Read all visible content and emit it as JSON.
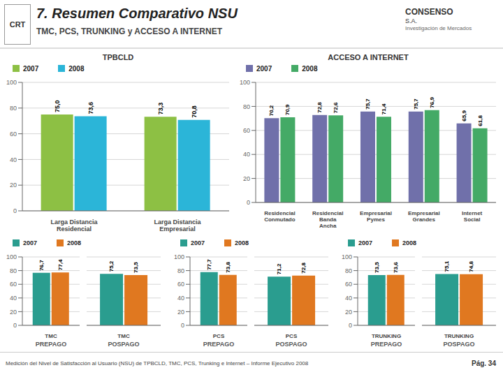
{
  "title": "7. Resumen Comparativo NSU",
  "subtitle": "TMC, PCS, TRUNKING y ACCESO A INTERNET",
  "annotations": [
    "CRT",
    "CONSENSO",
    "S.A.",
    "Investigación de Mercados",
    "Medición del Nivel de Satisfacción al Usuario (NSU) de TPBCLD, TMC, PCS, Trunking e Internet – Informe Ejecutivo 2008",
    "Pág. 34"
  ],
  "chart_data": [
    {
      "type": "bar",
      "title": "TPBCLD",
      "categories": [
        "Larga Distancia\nResidencial",
        "Larga Distancia\nEmpresarial"
      ],
      "series": [
        {
          "name": "2007",
          "color": "#8dc044",
          "values": [
            75.0,
            73.3
          ],
          "value_labels": [
            "75,0",
            "73,3"
          ]
        },
        {
          "name": "2008",
          "color": "#2bb5d8",
          "values": [
            73.6,
            70.8
          ],
          "value_labels": [
            "73,6",
            "70,8"
          ]
        }
      ],
      "ylim": [
        0,
        100
      ],
      "yticks": [
        0,
        20,
        40,
        60,
        80,
        100
      ],
      "grid": true,
      "legend": "upper left",
      "data_labels": true
    },
    {
      "type": "bar",
      "title": "ACCESO A INTERNET",
      "categories": [
        "Residencial\nConmutado",
        "Residencial\nBanda\nAncha",
        "Empresarial\nPymes",
        "Empresarial\nGrandes",
        "Internet\nSocial"
      ],
      "series": [
        {
          "name": "2007",
          "color": "#7070aa",
          "values": [
            70.2,
            72.8,
            75.7,
            75.7,
            65.9
          ],
          "value_labels": [
            "70,2",
            "72,8",
            "75,7",
            "75,7",
            "65,9"
          ]
        },
        {
          "name": "2008",
          "color": "#44aa66",
          "values": [
            70.9,
            72.6,
            71.4,
            76.9,
            61.8
          ],
          "value_labels": [
            "70,9",
            "72,6",
            "71,4",
            "76,9",
            "61,8"
          ]
        }
      ],
      "ylim": [
        0,
        100
      ],
      "yticks": [
        0,
        20,
        40,
        60,
        80,
        100
      ],
      "grid": true,
      "legend": "upper left",
      "data_labels": true
    },
    {
      "type": "bar",
      "categories": [
        "TMC"
      ],
      "xlabel": "PREPAGO",
      "series": [
        {
          "name": "2007",
          "color": "#2a9d8f",
          "values": [
            76.7
          ],
          "value_labels": [
            "76,7"
          ]
        },
        {
          "name": "2008",
          "color": "#e07820",
          "values": [
            77.4
          ],
          "value_labels": [
            "77,4"
          ]
        }
      ],
      "ylim": [
        0,
        100
      ],
      "yticks": [
        0,
        20,
        40,
        60,
        80,
        100
      ],
      "grid": true,
      "legend": "upper left",
      "data_labels": true
    },
    {
      "type": "bar",
      "categories": [
        "TMC"
      ],
      "xlabel": "POSPAGO",
      "series": [
        {
          "name": "2007",
          "color": "#2a9d8f",
          "values": [
            75.2
          ],
          "value_labels": [
            "75,2"
          ]
        },
        {
          "name": "2008",
          "color": "#e07820",
          "values": [
            73.5
          ],
          "value_labels": [
            "73,5"
          ]
        }
      ],
      "ylim": [
        0,
        100
      ],
      "yticks": [
        0,
        20,
        40,
        60,
        80,
        100
      ],
      "grid": true,
      "tick_labels": "x",
      "data_labels": true
    },
    {
      "type": "bar",
      "categories": [
        "PCS"
      ],
      "xlabel": "PREPAGO",
      "series": [
        {
          "name": "2007",
          "color": "#2a9d8f",
          "values": [
            77.7
          ],
          "value_labels": [
            "77,7"
          ]
        },
        {
          "name": "2008",
          "color": "#e07820",
          "values": [
            73.8
          ],
          "value_labels": [
            "73,8"
          ]
        }
      ],
      "ylim": [
        0,
        100
      ],
      "yticks": [
        0,
        20,
        40,
        60,
        80,
        100
      ],
      "grid": true,
      "legend": "upper left",
      "data_labels": true
    },
    {
      "type": "bar",
      "categories": [
        "PCS"
      ],
      "xlabel": "POSPAGO",
      "series": [
        {
          "name": "2007",
          "color": "#2a9d8f",
          "values": [
            71.2
          ],
          "value_labels": [
            "71,2"
          ]
        },
        {
          "name": "2008",
          "color": "#e07820",
          "values": [
            72.8
          ],
          "value_labels": [
            "72,8"
          ]
        }
      ],
      "ylim": [
        0,
        100
      ],
      "yticks": [
        0,
        20,
        40,
        60,
        80,
        100
      ],
      "grid": true,
      "tick_labels": "x",
      "data_labels": true
    },
    {
      "type": "bar",
      "categories": [
        "TRUNKING"
      ],
      "xlabel": "PREPAGO",
      "series": [
        {
          "name": "2007",
          "color": "#2a9d8f",
          "values": [
            73.5
          ],
          "value_labels": [
            "73,5"
          ]
        },
        {
          "name": "2008",
          "color": "#e07820",
          "values": [
            73.6
          ],
          "value_labels": [
            "73,6"
          ]
        }
      ],
      "ylim": [
        0,
        100
      ],
      "yticks": [
        0,
        20,
        40,
        60,
        80,
        100
      ],
      "grid": true,
      "legend": "upper left",
      "data_labels": true
    },
    {
      "type": "bar",
      "categories": [
        "TRUNKING"
      ],
      "xlabel": "POSPAGO",
      "series": [
        {
          "name": "2007",
          "color": "#2a9d8f",
          "values": [
            75.1
          ],
          "value_labels": [
            "75,1"
          ]
        },
        {
          "name": "2008",
          "color": "#e07820",
          "values": [
            74.8
          ],
          "value_labels": [
            "74,8"
          ]
        }
      ],
      "ylim": [
        0,
        100
      ],
      "yticks": [
        0,
        20,
        40,
        60,
        80,
        100
      ],
      "grid": true,
      "tick_labels": "x",
      "data_labels": true
    }
  ]
}
